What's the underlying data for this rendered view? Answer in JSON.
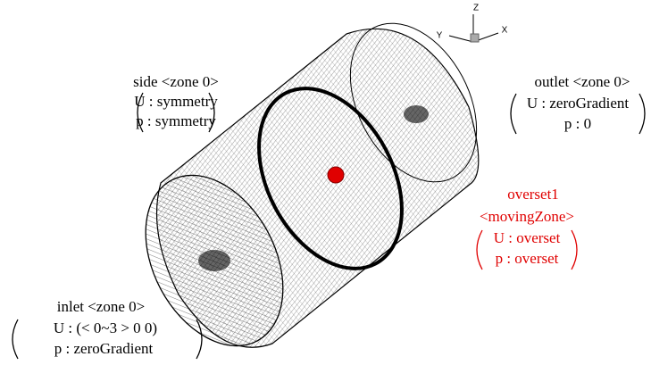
{
  "axes_triad": {
    "z": "Z",
    "y": "Y",
    "x": "X"
  },
  "annotations": [
    {
      "title": "side <zone 0>",
      "lines": [
        "U : symmetry",
        "p : symmetry"
      ]
    },
    {
      "title": "outlet <zone 0>",
      "lines": [
        "U : zeroGradient",
        "p : 0"
      ]
    },
    {
      "title": "overset1",
      "subtitle": "<movingZone>",
      "lines": [
        "U : overset",
        "p : overset"
      ]
    },
    {
      "title": "inlet <zone 0>",
      "lines": [
        "U : (< 0~3 >  0 0)",
        "p : zeroGradient"
      ]
    }
  ]
}
